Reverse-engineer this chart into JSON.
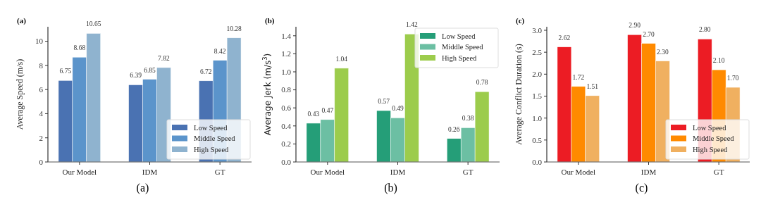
{
  "chart_data": [
    {
      "type": "bar",
      "title": "(a)",
      "ylabel": "Average Speed (m/s)",
      "categories": [
        "Our Model",
        "IDM",
        "GT"
      ],
      "series": [
        {
          "name": "Low Speed",
          "color": "#4a72b2",
          "values": [
            6.75,
            6.39,
            6.72
          ]
        },
        {
          "name": "Middle Speed",
          "color": "#5b94cb",
          "values": [
            8.68,
            6.85,
            8.42
          ]
        },
        {
          "name": "High Speed",
          "color": "#8fb3cf",
          "values": [
            10.65,
            7.82,
            10.28
          ]
        }
      ],
      "ylim": [
        0,
        11.2
      ],
      "yticks": [
        0,
        2,
        4,
        6,
        8,
        10
      ],
      "data_labels": true,
      "legend": "bottom right",
      "grid": false,
      "annotations": [
        "(a)"
      ]
    },
    {
      "type": "bar",
      "title": "(b)",
      "ylabel": "Average Jerk (m/s$^{3}$)",
      "categories": [
        "Our Model",
        "IDM",
        "GT"
      ],
      "series": [
        {
          "name": "Low Speed",
          "color": "#259e78",
          "values": [
            0.43,
            0.57,
            0.26
          ]
        },
        {
          "name": "Middle Speed",
          "color": "#6cbfa3",
          "values": [
            0.47,
            0.49,
            0.38
          ]
        },
        {
          "name": "High Speed",
          "color": "#9ccc4c",
          "values": [
            1.04,
            1.42,
            0.78
          ]
        }
      ],
      "ylim": [
        0,
        1.5
      ],
      "yticks": [
        {
          "value": 0,
          "label": "0.0"
        },
        0.2,
        0.4,
        0.6,
        0.8,
        {
          "value": 1,
          "label": "1.0"
        },
        1.2,
        1.4
      ],
      "data_labels": true,
      "legend": "top right",
      "grid": false,
      "annotations": [
        "(b)"
      ]
    },
    {
      "type": "bar",
      "title": "(c)",
      "ylabel": "Average Conflict Duration (s)",
      "categories": [
        "Our Model",
        "IDM",
        "GT"
      ],
      "series": [
        {
          "name": "Low Speed",
          "color": "#ec1c24",
          "values": [
            2.62,
            2.9,
            2.8
          ],
          "value_labels": [
            "2.62",
            "2.90",
            "2.80"
          ]
        },
        {
          "name": "Middle Speed",
          "color": "#ff8a00",
          "values": [
            1.72,
            2.7,
            2.1
          ],
          "value_labels": [
            "1.72",
            "2.70",
            "2.10"
          ]
        },
        {
          "name": "High Speed",
          "color": "#f0b060",
          "values": [
            1.51,
            2.3,
            1.7
          ],
          "value_labels": [
            "1.51",
            "2.30",
            "1.70"
          ]
        }
      ],
      "ylim": [
        0,
        3.08
      ],
      "yticks": [
        {
          "value": 0,
          "label": "0.0"
        },
        0.5,
        {
          "value": 1,
          "label": "1.0"
        },
        1.5,
        {
          "value": 2,
          "label": "2.0"
        },
        2.5,
        {
          "value": 3,
          "label": "3.0"
        }
      ],
      "legend": "bottom right",
      "grid": false,
      "annotations": [
        "(c)"
      ]
    }
  ]
}
